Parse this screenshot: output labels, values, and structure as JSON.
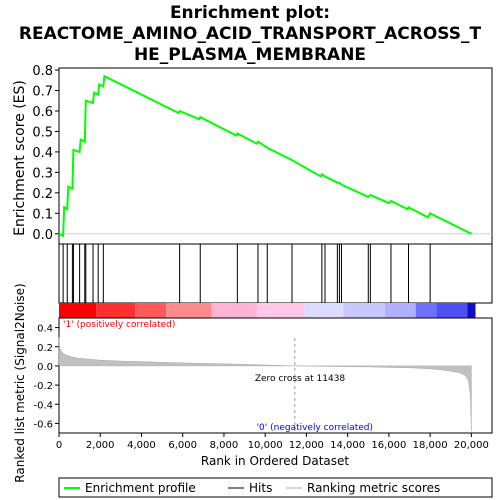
{
  "title_line1": "Enrichment plot:",
  "title_line2": "REACTOME_AMINO_ACID_TRANSPORT_ACROSS_T",
  "title_line3": "HE_PLASMA_MEMBRANE",
  "colors": {
    "es_line": "#00ff00",
    "hits": "#000000",
    "metric_fill": "#c0c0c0",
    "pos_label": "#ff0000",
    "neg_label": "#0000ff",
    "zero_cross_line": "#a0a0a0"
  },
  "chart_data": {
    "type": "line",
    "x_range": [
      0,
      21000
    ],
    "x_ticks": [
      0,
      2000,
      4000,
      6000,
      8000,
      10000,
      12000,
      14000,
      16000,
      18000,
      20000
    ],
    "x_tick_labels": [
      "0",
      "2,000",
      "4,000",
      "6,000",
      "8,000",
      "10,000",
      "12,000",
      "14,000",
      "16,000",
      "18,000",
      "20,000"
    ],
    "xlabel": "Rank in Ordered Dataset",
    "es_panel": {
      "ylabel": "Enrichment score (ES)",
      "ylim": [
        -0.05,
        0.81
      ],
      "y_ticks": [
        0.0,
        0.1,
        0.2,
        0.3,
        0.4,
        0.5,
        0.6,
        0.7,
        0.8
      ],
      "y_tick_labels": [
        "0.0",
        "0.1",
        "0.2",
        "0.3",
        "0.4",
        "0.5",
        "0.6",
        "0.7",
        "0.8"
      ],
      "es_curve": {
        "x": [
          0,
          200,
          250,
          400,
          450,
          650,
          700,
          1000,
          1050,
          1250,
          1300,
          1650,
          1700,
          1900,
          1950,
          2150,
          2200,
          5800,
          5850,
          6800,
          6850,
          8600,
          8650,
          9600,
          9650,
          10100,
          11300,
          12700,
          12750,
          12900,
          13500,
          13600,
          13700,
          15000,
          15100,
          16000,
          16100,
          16900,
          16950,
          17900,
          18000,
          20000
        ],
        "y": [
          0.0,
          -0.01,
          0.13,
          0.12,
          0.23,
          0.22,
          0.41,
          0.4,
          0.46,
          0.45,
          0.65,
          0.64,
          0.69,
          0.68,
          0.73,
          0.72,
          0.77,
          0.59,
          0.6,
          0.56,
          0.57,
          0.48,
          0.49,
          0.44,
          0.45,
          0.42,
          0.36,
          0.28,
          0.29,
          0.28,
          0.25,
          0.25,
          0.24,
          0.18,
          0.19,
          0.15,
          0.16,
          0.12,
          0.13,
          0.08,
          0.1,
          0.0
        ]
      },
      "hits": [
        200,
        400,
        650,
        700,
        1000,
        1250,
        1300,
        1650,
        1900,
        2150,
        5850,
        6850,
        8650,
        9650,
        10100,
        11300,
        12750,
        12900,
        13500,
        13600,
        13700,
        15000,
        15100,
        16100,
        16950,
        18000
      ]
    },
    "metric_panel": {
      "ylabel": "Ranked list metric (Signal2Noise)",
      "ylim": [
        -0.7,
        0.5
      ],
      "y_ticks": [
        -0.6,
        -0.4,
        -0.2,
        0.0,
        0.2,
        0.4
      ],
      "y_tick_labels": [
        "-0.6",
        "-0.4",
        "-0.2",
        "0.0",
        "0.2",
        "0.4"
      ],
      "metric_curve": {
        "x": [
          0,
          30,
          100,
          200,
          400,
          700,
          1000,
          1500,
          2000,
          3000,
          4000,
          5000,
          6000,
          8000,
          10000,
          11438,
          13000,
          15000,
          16000,
          17000,
          18000,
          18500,
          19000,
          19400,
          19700,
          19850,
          19950,
          20000
        ],
        "y": [
          0.3,
          0.2,
          0.16,
          0.13,
          0.11,
          0.09,
          0.08,
          0.07,
          0.06,
          0.05,
          0.045,
          0.038,
          0.032,
          0.022,
          0.01,
          0.0,
          -0.005,
          -0.01,
          -0.015,
          -0.02,
          -0.03,
          -0.04,
          -0.055,
          -0.07,
          -0.1,
          -0.15,
          -0.3,
          -0.68
        ]
      },
      "zero_cross_rank": 11438,
      "zero_cross_label": "Zero cross at 11438",
      "pos_label": "'1' (positively correlated)",
      "neg_label": "'0' (negatively correlated)"
    },
    "legend": {
      "placement": "bottom",
      "items": [
        "Enrichment profile",
        "Hits",
        "Ranking metric scores"
      ]
    }
  }
}
